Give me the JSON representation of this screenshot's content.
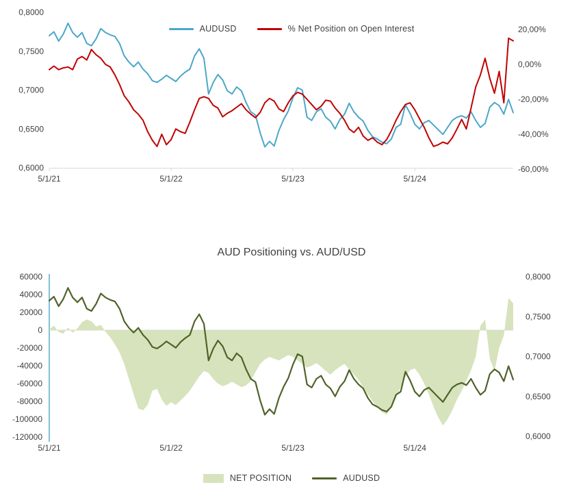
{
  "colors": {
    "audusd_blue": "#4ba6c9",
    "net_pct_red": "#c00000",
    "audusd_olive": "#4f6228",
    "net_position_fill": "#d6e3bc",
    "grid": "#d9d9d9",
    "text": "#404040"
  },
  "chart_data": [
    {
      "type": "line",
      "title": "",
      "legend_position": "top",
      "grid": "off",
      "x_count": 100,
      "x_ticks": [
        {
          "pos": 0,
          "label": "5/1/21"
        },
        {
          "pos": 26,
          "label": "5/1/22"
        },
        {
          "pos": 52,
          "label": "5/1/23"
        },
        {
          "pos": 78,
          "label": "5/1/24"
        }
      ],
      "axes": {
        "left": {
          "min": 0.6,
          "max": 0.8,
          "labels": [
            "0,8000",
            "0,7500",
            "0,7000",
            "0,6500",
            "0,6000"
          ]
        },
        "right": {
          "min": -60,
          "max": 20,
          "labels": [
            "20,00%",
            "0,00%",
            "-20,00%",
            "-40,00%",
            "-60,00%"
          ]
        }
      },
      "legend": [
        {
          "label": "AUDUSD"
        },
        {
          "label": "% Net Position on Open Interest"
        }
      ],
      "series": [
        {
          "name": "AUDUSD",
          "slug": "audusd",
          "axis": "left",
          "color": "#4ba6c9",
          "width": 2,
          "kind": "line",
          "values": [
            0.77,
            0.775,
            0.763,
            0.772,
            0.786,
            0.774,
            0.768,
            0.774,
            0.76,
            0.757,
            0.766,
            0.779,
            0.774,
            0.771,
            0.769,
            0.76,
            0.744,
            0.736,
            0.73,
            0.736,
            0.727,
            0.721,
            0.712,
            0.71,
            0.714,
            0.719,
            0.715,
            0.711,
            0.718,
            0.723,
            0.727,
            0.744,
            0.753,
            0.741,
            0.695,
            0.71,
            0.72,
            0.713,
            0.699,
            0.695,
            0.704,
            0.699,
            0.684,
            0.672,
            0.668,
            0.645,
            0.627,
            0.634,
            0.628,
            0.648,
            0.662,
            0.673,
            0.69,
            0.703,
            0.7,
            0.665,
            0.661,
            0.672,
            0.676,
            0.665,
            0.66,
            0.65,
            0.662,
            0.669,
            0.683,
            0.672,
            0.665,
            0.66,
            0.648,
            0.64,
            0.637,
            0.633,
            0.631,
            0.637,
            0.652,
            0.656,
            0.681,
            0.67,
            0.656,
            0.65,
            0.658,
            0.661,
            0.655,
            0.649,
            0.643,
            0.652,
            0.661,
            0.665,
            0.667,
            0.664,
            0.672,
            0.661,
            0.652,
            0.657,
            0.678,
            0.684,
            0.68,
            0.669,
            0.688,
            0.671
          ]
        },
        {
          "name": "% Net Position on Open Interest",
          "slug": "net-position-pct",
          "axis": "right",
          "color": "#c00000",
          "width": 2,
          "kind": "line",
          "values": [
            -3,
            -1,
            -3,
            -2,
            -1.5,
            -3,
            3,
            4.5,
            2.5,
            8.5,
            5.5,
            3.5,
            0,
            -1.5,
            -6,
            -11.5,
            -18,
            -21.5,
            -26,
            -28.5,
            -32,
            -38.5,
            -43.5,
            -47,
            -40,
            -46,
            -43,
            -37,
            -38.5,
            -39.5,
            -33,
            -26,
            -19.5,
            -18.5,
            -19.5,
            -23.5,
            -25,
            -30,
            -28,
            -26.5,
            -24.5,
            -22.5,
            -26,
            -28.5,
            -30.5,
            -27.5,
            -22,
            -19.5,
            -21,
            -25.5,
            -27,
            -22,
            -18,
            -16,
            -17,
            -20,
            -23,
            -26,
            -24,
            -20.5,
            -21,
            -25,
            -28,
            -32,
            -37,
            -39,
            -36,
            -41,
            -43.5,
            -42,
            -44.5,
            -46,
            -43,
            -38,
            -32,
            -27,
            -23,
            -22,
            -26,
            -31,
            -36,
            -42,
            -47,
            -46,
            -44.5,
            -45.5,
            -42,
            -37,
            -31.5,
            -37,
            -25,
            -13,
            -6,
            3.5,
            -8,
            -16.5,
            -4,
            -22,
            15,
            13.5
          ]
        }
      ]
    },
    {
      "type": "area+line",
      "title": "AUD Positioning vs. AUD/USD",
      "legend_position": "bottom",
      "grid": "zero-line-only",
      "x_count": 100,
      "x_ticks": [
        {
          "pos": 0,
          "label": "5/1/21"
        },
        {
          "pos": 26,
          "label": "5/1/22"
        },
        {
          "pos": 52,
          "label": "5/1/23"
        },
        {
          "pos": 78,
          "label": "5/1/24"
        }
      ],
      "axes": {
        "left": {
          "min": -120000,
          "max": 60000,
          "labels": [
            "60000",
            "40000",
            "20000",
            "0",
            "-20000",
            "-40000",
            "-60000",
            "-80000",
            "-100000",
            "-120000"
          ]
        },
        "right": {
          "min": 0.6,
          "max": 0.8,
          "labels": [
            "0,8000",
            "0,7500",
            "0,7000",
            "0,6500",
            "0,6000"
          ]
        }
      },
      "legend": [
        {
          "label": "NET POSITION"
        },
        {
          "label": "AUDUSD"
        }
      ],
      "series": [
        {
          "name": "NET POSITION",
          "slug": "net-position",
          "axis": "left",
          "color": "#d6e3bc",
          "kind": "area",
          "values": [
            1000,
            5000,
            -2000,
            -4000,
            3000,
            -3000,
            2000,
            9000,
            12000,
            10000,
            4000,
            6000,
            -2000,
            -8000,
            -16000,
            -25000,
            -38000,
            -55000,
            -72000,
            -88000,
            -90000,
            -84000,
            -68000,
            -66000,
            -78000,
            -85000,
            -81000,
            -84000,
            -79000,
            -74000,
            -68000,
            -60000,
            -52000,
            -46000,
            -48000,
            -55000,
            -60000,
            -63000,
            -61000,
            -58000,
            -61000,
            -64000,
            -62000,
            -57000,
            -47000,
            -38000,
            -33000,
            -30000,
            -32000,
            -34000,
            -31000,
            -28000,
            -30000,
            -34000,
            -38000,
            -42000,
            -40000,
            -37000,
            -41000,
            -46000,
            -50000,
            -45000,
            -41000,
            -38000,
            -44000,
            -50000,
            -56000,
            -64000,
            -72000,
            -80000,
            -86000,
            -92000,
            -95000,
            -87000,
            -76000,
            -64000,
            -52000,
            -45000,
            -43000,
            -50000,
            -60000,
            -72000,
            -86000,
            -98000,
            -107000,
            -100000,
            -90000,
            -78000,
            -68000,
            -57000,
            -45000,
            -30000,
            5000,
            12000,
            -32000,
            -46000,
            -20000,
            -6000,
            36000,
            30000
          ]
        },
        {
          "name": "AUDUSD",
          "slug": "audusd",
          "axis": "right",
          "color": "#4f6228",
          "width": 2.2,
          "kind": "line",
          "values": [
            0.77,
            0.775,
            0.763,
            0.772,
            0.786,
            0.774,
            0.768,
            0.774,
            0.76,
            0.757,
            0.766,
            0.779,
            0.774,
            0.771,
            0.769,
            0.76,
            0.744,
            0.736,
            0.73,
            0.736,
            0.727,
            0.721,
            0.712,
            0.71,
            0.714,
            0.719,
            0.715,
            0.711,
            0.718,
            0.723,
            0.727,
            0.744,
            0.753,
            0.741,
            0.695,
            0.71,
            0.72,
            0.713,
            0.699,
            0.695,
            0.704,
            0.699,
            0.684,
            0.672,
            0.668,
            0.645,
            0.627,
            0.634,
            0.628,
            0.648,
            0.662,
            0.673,
            0.69,
            0.703,
            0.7,
            0.665,
            0.661,
            0.672,
            0.676,
            0.665,
            0.66,
            0.65,
            0.662,
            0.669,
            0.683,
            0.672,
            0.665,
            0.66,
            0.648,
            0.64,
            0.637,
            0.633,
            0.631,
            0.637,
            0.652,
            0.656,
            0.681,
            0.67,
            0.656,
            0.65,
            0.658,
            0.661,
            0.655,
            0.649,
            0.643,
            0.652,
            0.661,
            0.665,
            0.667,
            0.664,
            0.672,
            0.661,
            0.652,
            0.657,
            0.678,
            0.684,
            0.68,
            0.669,
            0.688,
            0.671
          ]
        }
      ]
    }
  ]
}
